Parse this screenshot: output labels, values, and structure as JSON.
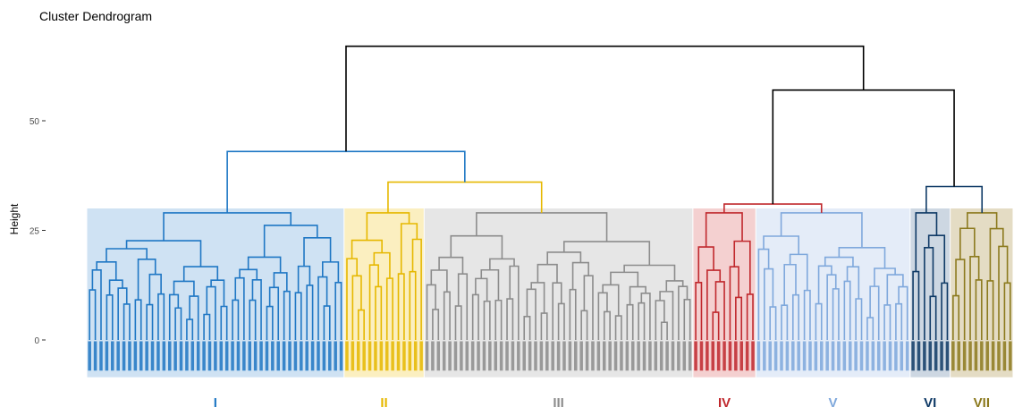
{
  "chart_data": {
    "type": "dendrogram",
    "title": "Cluster Dendrogram",
    "ylabel": "Height",
    "xlabel": "",
    "ylim": [
      -8,
      68
    ],
    "yticks": [
      0,
      25,
      50
    ],
    "grid": false,
    "clusters": [
      {
        "label": "I",
        "color": "#1f77c4",
        "fill": "#cfe2f3",
        "leaves": 45,
        "height": 43
      },
      {
        "label": "II",
        "color": "#e6b800",
        "fill": "#fbefc0",
        "leaves": 14,
        "height": 36
      },
      {
        "label": "III",
        "color": "#8c8c8c",
        "fill": "#e6e6e6",
        "leaves": 47,
        "height": 29
      },
      {
        "label": "IV",
        "color": "#c0282d",
        "fill": "#f4d0d0",
        "leaves": 11,
        "height": 31
      },
      {
        "label": "V",
        "color": "#7fa8dc",
        "fill": "#e4ecf8",
        "leaves": 27,
        "height": 31
      },
      {
        "label": "VI",
        "color": "#0f3a66",
        "fill": "#cdd7e2",
        "leaves": 7,
        "height": 35
      },
      {
        "label": "VII",
        "color": "#8c7a1e",
        "fill": "#e4dcc4",
        "leaves": 11,
        "height": 35
      }
    ],
    "merges": [
      {
        "joins": [
          "I",
          "II+III"
        ],
        "height": 43
      },
      {
        "joins": [
          "II",
          "III"
        ],
        "height": 36
      },
      {
        "joins": [
          "IV+V",
          "VI+VII"
        ],
        "height": 57
      },
      {
        "joins": [
          "IV",
          "V"
        ],
        "height": 31
      },
      {
        "joins": [
          "VI",
          "VII"
        ],
        "height": 35
      },
      {
        "joins": [
          "I+II+III",
          "IV+V+VI+VII"
        ],
        "height": 67
      }
    ]
  }
}
